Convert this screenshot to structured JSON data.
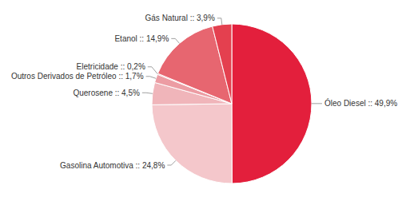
{
  "chart_data": {
    "type": "pie",
    "categories": [
      "Óleo Diesel",
      "Gasolina Automotiva",
      "Querosene",
      "Outros Derivados de Petróleo",
      "Eletricidade",
      "Etanol",
      "Gás Natural"
    ],
    "values": [
      49.9,
      24.8,
      4.5,
      1.7,
      0.2,
      14.9,
      3.9
    ],
    "value_labels": [
      "Óleo Diesel :: 49,9%",
      "Gasolina Automotiva :: 24,8%",
      "Querosene :: 4,5%",
      "Outros Derivados de Petróleo :: 1,7%",
      "Eletricidade :: 0,2%",
      "Etanol :: 14,9%",
      "Gás Natural :: 3,9%"
    ],
    "colors": [
      "#e31f3c",
      "#f4c7cb",
      "#f0b5ba",
      "#ec9ca3",
      "#e8838b",
      "#e76670",
      "#e4404f"
    ],
    "data_labels": true
  }
}
